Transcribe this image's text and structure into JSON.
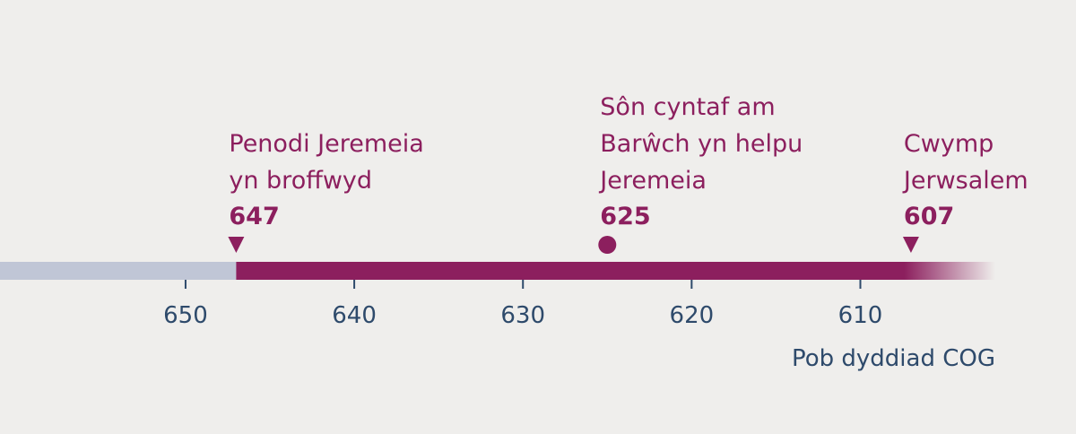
{
  "timeline": {
    "xlim": [
      661,
      602
    ],
    "xticks": [
      650,
      640,
      630,
      620,
      610
    ],
    "events": [
      {
        "lines": [
          "Penodi Jeremeia",
          "yn broffwyd"
        ],
        "year": 647,
        "marker": "triangle"
      },
      {
        "lines": [
          "Sôn cyntaf am",
          "Barŵch yn helpu",
          "Jeremeia"
        ],
        "year": 625,
        "marker": "circle"
      },
      {
        "lines": [
          "Cwymp",
          "Jerwsalem"
        ],
        "year": 607,
        "marker": "triangle"
      }
    ],
    "note": "Pob dyddiad COG",
    "colors": {
      "accent": "#8c1f5e",
      "before": "#c0c6d6",
      "axis": "#2e4a6b"
    }
  }
}
